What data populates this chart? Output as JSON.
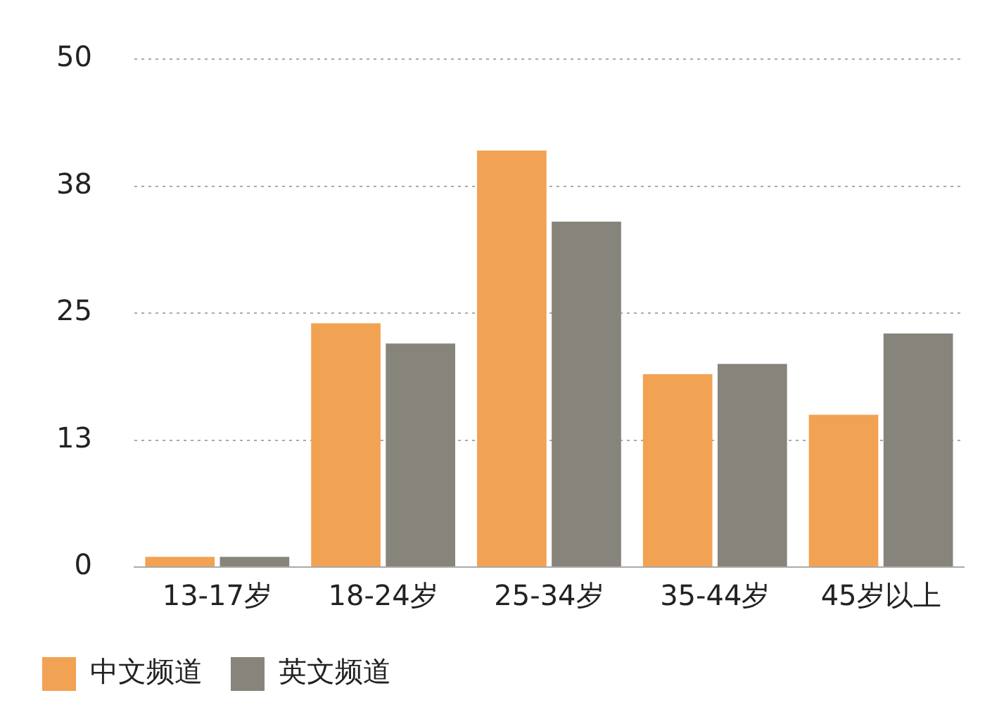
{
  "chart_data": {
    "type": "bar",
    "categories": [
      "13-17岁",
      "18-24岁",
      "25-34岁",
      "35-44岁",
      "45岁以上"
    ],
    "series": [
      {
        "name": "中文频道",
        "color": "#f2a253",
        "values": [
          1,
          24,
          41,
          19,
          15
        ]
      },
      {
        "name": "英文频道",
        "color": "#87847c",
        "values": [
          1,
          22,
          34,
          20,
          23
        ]
      }
    ],
    "ylim": [
      0,
      50
    ],
    "yticks": [
      0,
      {
        "value": 12.5,
        "label": "13"
      },
      25,
      {
        "value": 37.5,
        "label": "38"
      },
      50
    ],
    "grid": "y",
    "legend": "bottom"
  }
}
